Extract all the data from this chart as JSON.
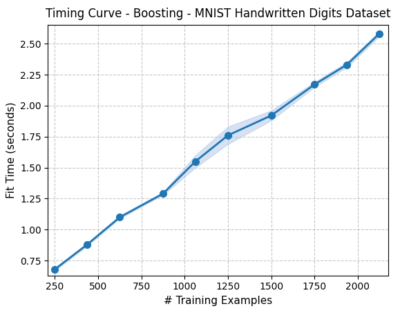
{
  "title": "Timing Curve - Boosting - MNIST Handwritten Digits Dataset",
  "xlabel": "# Training Examples",
  "ylabel": "Fit Time (seconds)",
  "x": [
    250,
    437,
    625,
    875,
    1062,
    1250,
    1500,
    1750,
    1937,
    2125
  ],
  "y": [
    0.68,
    0.88,
    1.1,
    1.29,
    1.55,
    1.76,
    1.92,
    2.17,
    2.33,
    2.58
  ],
  "y_err": [
    0.01,
    0.01,
    0.01,
    0.01,
    0.05,
    0.07,
    0.04,
    0.02,
    0.02,
    0.02
  ],
  "line_color": "#1f77b4",
  "fill_color": "#aec7e8",
  "marker": "o",
  "markersize": 7,
  "linewidth": 2,
  "xlim": [
    210,
    2175
  ],
  "ylim": [
    0.63,
    2.65
  ],
  "xticks": [
    250,
    500,
    750,
    1000,
    1250,
    1500,
    1750,
    2000
  ],
  "yticks": [
    0.75,
    1.0,
    1.25,
    1.5,
    1.75,
    2.0,
    2.25,
    2.5
  ],
  "grid": true,
  "grid_style": "--",
  "grid_color": "#b0b0b0",
  "title_fontsize": 12,
  "label_fontsize": 11,
  "tick_fontsize": 10,
  "background_color": "#ffffff"
}
